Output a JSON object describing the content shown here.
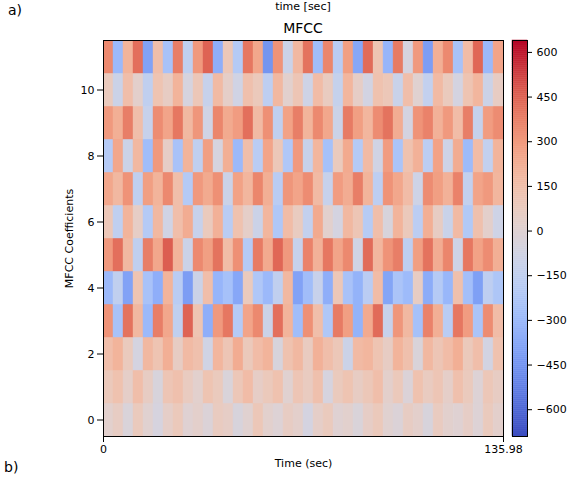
{
  "page_texts": {
    "panel_label": "a)",
    "above_fragment": "time [sec]",
    "next_panel_label": "b)"
  },
  "chart_data": {
    "type": "heatmap",
    "title": "MFCC",
    "x_label": "Time (sec)",
    "y_label": "MFCC Coefficients",
    "x": [
      0,
      3.4,
      6.8,
      10.2,
      13.6,
      17,
      20.4,
      23.8,
      27.2,
      30.6,
      34,
      37.4,
      40.8,
      44.2,
      47.6,
      51,
      54.4,
      57.8,
      61.2,
      64.6,
      68,
      71.4,
      74.8,
      78.2,
      81.6,
      85,
      88.4,
      91.8,
      95.2,
      98.6,
      102,
      105.4,
      108.8,
      112.2,
      115.6,
      119,
      122.4,
      125.8,
      129.2,
      132.6
    ],
    "y": [
      0,
      1,
      2,
      3,
      4,
      5,
      6,
      7,
      8,
      9,
      10,
      11
    ],
    "z": [
      [
        20,
        60,
        -30,
        80,
        10,
        -50,
        40,
        90,
        0,
        30,
        -20,
        70,
        50,
        -40,
        10,
        100,
        20,
        -10,
        60,
        30,
        -60,
        40,
        80,
        0,
        20,
        -30,
        50,
        90,
        10,
        -20,
        60,
        30,
        -40,
        70,
        20,
        0,
        50,
        -10,
        80,
        30
      ],
      [
        90,
        130,
        40,
        150,
        60,
        -40,
        110,
        140,
        70,
        20,
        120,
        80,
        -30,
        100,
        160,
        50,
        90,
        130,
        10,
        110,
        70,
        140,
        -50,
        80,
        120,
        60,
        100,
        150,
        30,
        90,
        -20,
        130,
        70,
        110,
        40,
        140,
        80,
        -10,
        100,
        60
      ],
      [
        150,
        200,
        80,
        -60,
        180,
        120,
        220,
        60,
        170,
        140,
        -80,
        190,
        110,
        230,
        90,
        160,
        200,
        -40,
        130,
        180,
        70,
        210,
        150,
        100,
        -100,
        170,
        190,
        120,
        60,
        200,
        140,
        -30,
        180,
        110,
        160,
        220,
        90,
        150,
        -70,
        130
      ],
      [
        320,
        -250,
        410,
        180,
        -300,
        380,
        250,
        -150,
        450,
        120,
        -350,
        300,
        400,
        -200,
        260,
        350,
        -100,
        420,
        200,
        -280,
        330,
        150,
        -220,
        390,
        280,
        -330,
        240,
        430,
        -120,
        310,
        180,
        -260,
        370,
        220,
        -180,
        400,
        290,
        -240,
        340,
        160
      ],
      [
        -300,
        -150,
        -400,
        120,
        -250,
        -350,
        200,
        -180,
        -420,
        -100,
        150,
        -320,
        -260,
        -380,
        80,
        -220,
        -300,
        -150,
        180,
        -400,
        -280,
        -120,
        -350,
        100,
        -250,
        -330,
        -180,
        160,
        -390,
        -240,
        -290,
        60,
        -360,
        -200,
        -310,
        140,
        -270,
        -410,
        -160,
        -230
      ],
      [
        300,
        420,
        180,
        -150,
        380,
        250,
        460,
        200,
        -100,
        350,
        280,
        410,
        160,
        330,
        -200,
        390,
        240,
        440,
        300,
        -120,
        370,
        210,
        400,
        260,
        350,
        -80,
        430,
        190,
        320,
        380,
        -160,
        280,
        410,
        230,
        360,
        -90,
        400,
        270,
        340,
        220
      ],
      [
        100,
        -150,
        200,
        50,
        -200,
        180,
        -80,
        150,
        230,
        -120,
        80,
        210,
        -180,
        130,
        40,
        -100,
        190,
        -220,
        160,
        70,
        -140,
        240,
        20,
        -60,
        180,
        110,
        -190,
        150,
        -40,
        200,
        90,
        -170,
        220,
        60,
        -110,
        170,
        -210,
        140,
        30,
        -90
      ],
      [
        250,
        180,
        320,
        -150,
        280,
        200,
        350,
        150,
        -200,
        300,
        240,
        330,
        -100,
        270,
        190,
        360,
        220,
        -180,
        310,
        260,
        340,
        170,
        -120,
        290,
        230,
        380,
        200,
        -160,
        320,
        250,
        160,
        -90,
        340,
        280,
        210,
        370,
        -140,
        260,
        300,
        190
      ],
      [
        -200,
        250,
        -100,
        180,
        -280,
        300,
        50,
        -250,
        200,
        -150,
        280,
        -50,
        220,
        -300,
        150,
        -180,
        260,
        100,
        -220,
        300,
        -120,
        190,
        -260,
        80,
        240,
        -200,
        170,
        -80,
        290,
        -240,
        130,
        210,
        -170,
        270,
        -90,
        230,
        -290,
        160,
        -140,
        200
      ],
      [
        300,
        220,
        380,
        150,
        -120,
        340,
        260,
        400,
        180,
        310,
        -80,
        360,
        240,
        290,
        420,
        170,
        330,
        -150,
        270,
        380,
        200,
        350,
        250,
        -100,
        390,
        280,
        190,
        340,
        410,
        230,
        -60,
        320,
        370,
        210,
        300,
        160,
        380,
        -130,
        290,
        340
      ],
      [
        80,
        -100,
        150,
        30,
        -150,
        120,
        60,
        200,
        -50,
        100,
        -120,
        170,
        40,
        -80,
        140,
        90,
        -160,
        180,
        20,
        110,
        -90,
        160,
        70,
        -130,
        190,
        50,
        -70,
        130,
        100,
        -110,
        150,
        10,
        -140,
        170,
        80,
        -60,
        120,
        190,
        -100,
        60
      ],
      [
        350,
        -300,
        200,
        420,
        -400,
        150,
        -250,
        380,
        -150,
        300,
        450,
        -350,
        100,
        -200,
        400,
        250,
        -450,
        320,
        -100,
        180,
        410,
        -280,
        360,
        -180,
        280,
        -380,
        430,
        120,
        -320,
        390,
        -50,
        300,
        -420,
        220,
        350,
        -250,
        160,
        440,
        -300,
        260
      ]
    ],
    "xlim": [
      0,
      135.98
    ],
    "xticks": [
      0,
      135.98
    ],
    "ylim": [
      -0.5,
      11.5
    ],
    "yticks": [
      0,
      2,
      4,
      6,
      8,
      10
    ],
    "colorbar": {
      "range": [
        -690,
        640
      ],
      "ticks": [
        {
          "value": -600,
          "label": "−600"
        },
        {
          "value": -450,
          "label": "−450"
        },
        {
          "value": -300,
          "label": "−300"
        },
        {
          "value": -150,
          "label": "−150"
        },
        0,
        150,
        300,
        450,
        600
      ]
    }
  }
}
